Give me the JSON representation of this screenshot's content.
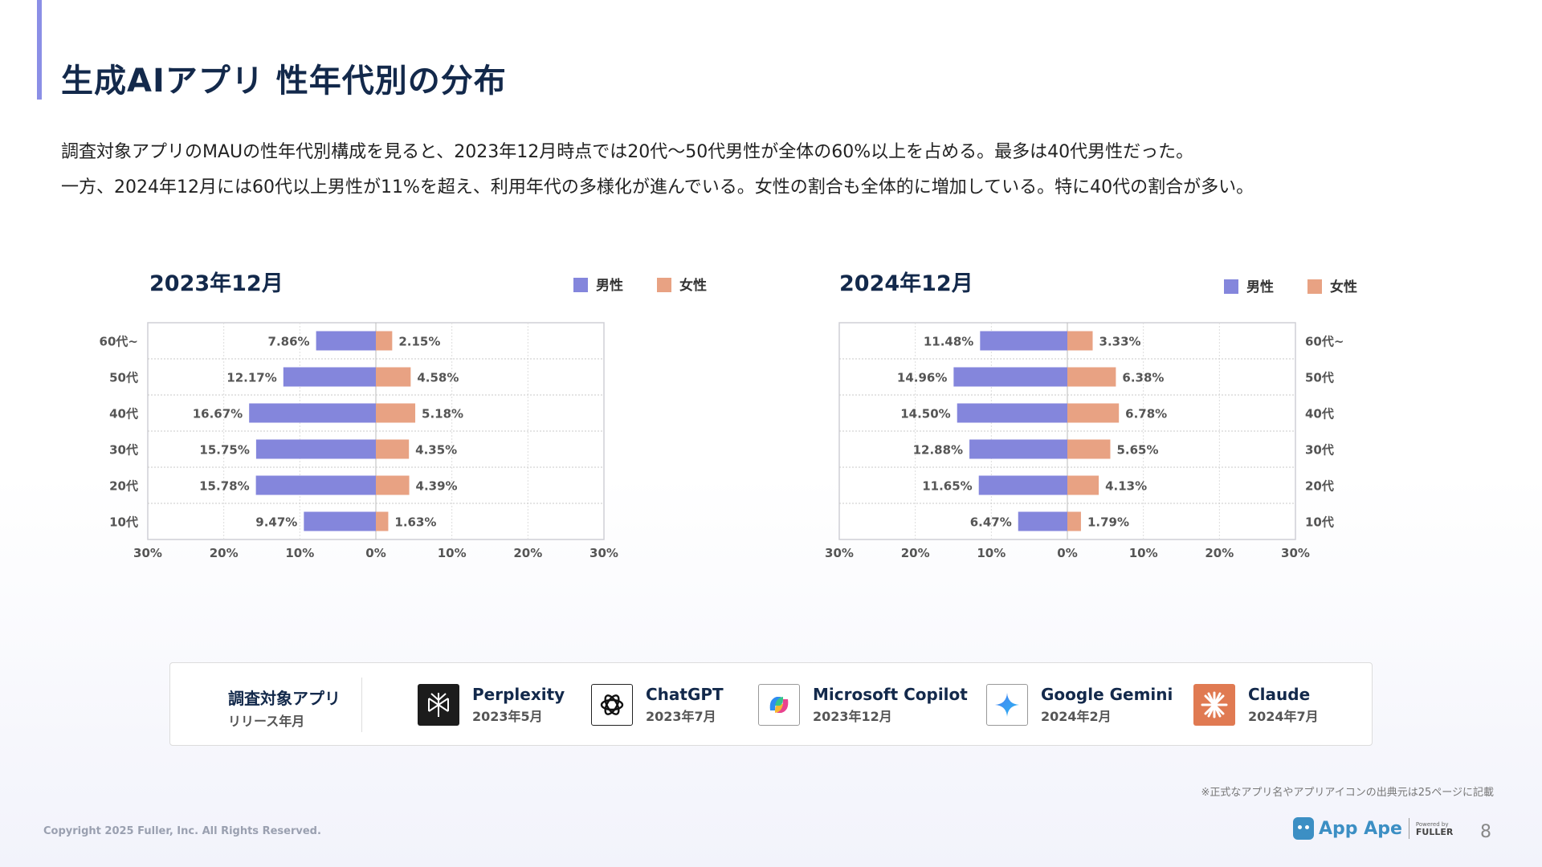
{
  "title": "生成AIアプリ 性年代別の分布",
  "description": [
    "調査対象アプリのMAUの性年代別構成を見ると、2023年12月時点では20代〜50代男性が全体の60%以上を占める。最多は40代男性だった。",
    "一方、2024年12月には60代以上男性が11%を超え、利用年代の多様化が進んでいる。女性の割合も全体的に増加している。特に40代の割合が多い。"
  ],
  "colors": {
    "male": "#8486dc",
    "female": "#e8a283",
    "accent": "#8b8fe6",
    "title": "#13294b"
  },
  "chart_data": [
    {
      "type": "bar",
      "orientation": "horizontal-diverging",
      "title": "2023年12月",
      "categories": [
        "60代~",
        "50代",
        "40代",
        "30代",
        "20代",
        "10代"
      ],
      "series": [
        {
          "name": "男性",
          "values": [
            7.86,
            12.17,
            16.67,
            15.75,
            15.78,
            9.47
          ],
          "labels": [
            "7.86%",
            "12.17%",
            "16.67%",
            "15.75%",
            "15.78%",
            "9.47%"
          ]
        },
        {
          "name": "女性",
          "values": [
            2.15,
            4.58,
            5.18,
            4.35,
            4.39,
            1.63
          ],
          "labels": [
            "2.15%",
            "4.58%",
            "5.18%",
            "4.35%",
            "4.39%",
            "1.63%"
          ]
        }
      ],
      "xlim": [
        -30,
        30
      ],
      "xticks": [
        "30%",
        "20%",
        "10%",
        "0%",
        "10%",
        "20%",
        "30%"
      ],
      "category_axis": "left",
      "legend": "top-right",
      "grid": true
    },
    {
      "type": "bar",
      "orientation": "horizontal-diverging",
      "title": "2024年12月",
      "categories": [
        "60代~",
        "50代",
        "40代",
        "30代",
        "20代",
        "10代"
      ],
      "series": [
        {
          "name": "男性",
          "values": [
            11.48,
            14.96,
            14.5,
            12.88,
            11.65,
            6.47
          ],
          "labels": [
            "11.48%",
            "14.96%",
            "14.50%",
            "12.88%",
            "11.65%",
            "6.47%"
          ]
        },
        {
          "name": "女性",
          "values": [
            3.33,
            6.38,
            6.78,
            5.65,
            4.13,
            1.79
          ],
          "labels": [
            "3.33%",
            "6.38%",
            "6.78%",
            "5.65%",
            "4.13%",
            "1.79%"
          ]
        }
      ],
      "xlim": [
        -30,
        30
      ],
      "xticks": [
        "30%",
        "20%",
        "10%",
        "0%",
        "10%",
        "20%",
        "30%"
      ],
      "category_axis": "right",
      "legend": "top-right",
      "grid": true
    }
  ],
  "apps": {
    "heading": "調査対象アプリ",
    "subheading": "リリース年月",
    "items": [
      {
        "name": "Perplexity",
        "date": "2023年5月",
        "icon": "perplexity-icon"
      },
      {
        "name": "ChatGPT",
        "date": "2023年7月",
        "icon": "chatgpt-icon"
      },
      {
        "name": "Microsoft Copilot",
        "date": "2023年12月",
        "icon": "copilot-icon"
      },
      {
        "name": "Google Gemini",
        "date": "2024年2月",
        "icon": "gemini-icon"
      },
      {
        "name": "Claude",
        "date": "2024年7月",
        "icon": "claude-icon"
      }
    ]
  },
  "note": "※正式なアプリ名やアプリアイコンの出典元は25ページに記載",
  "copyright": "Copyright 2025 Fuller, Inc. All Rights Reserved.",
  "logo": {
    "name": "App Ape",
    "powered": "Powered by",
    "company": "FULLER"
  },
  "page_number": "8"
}
